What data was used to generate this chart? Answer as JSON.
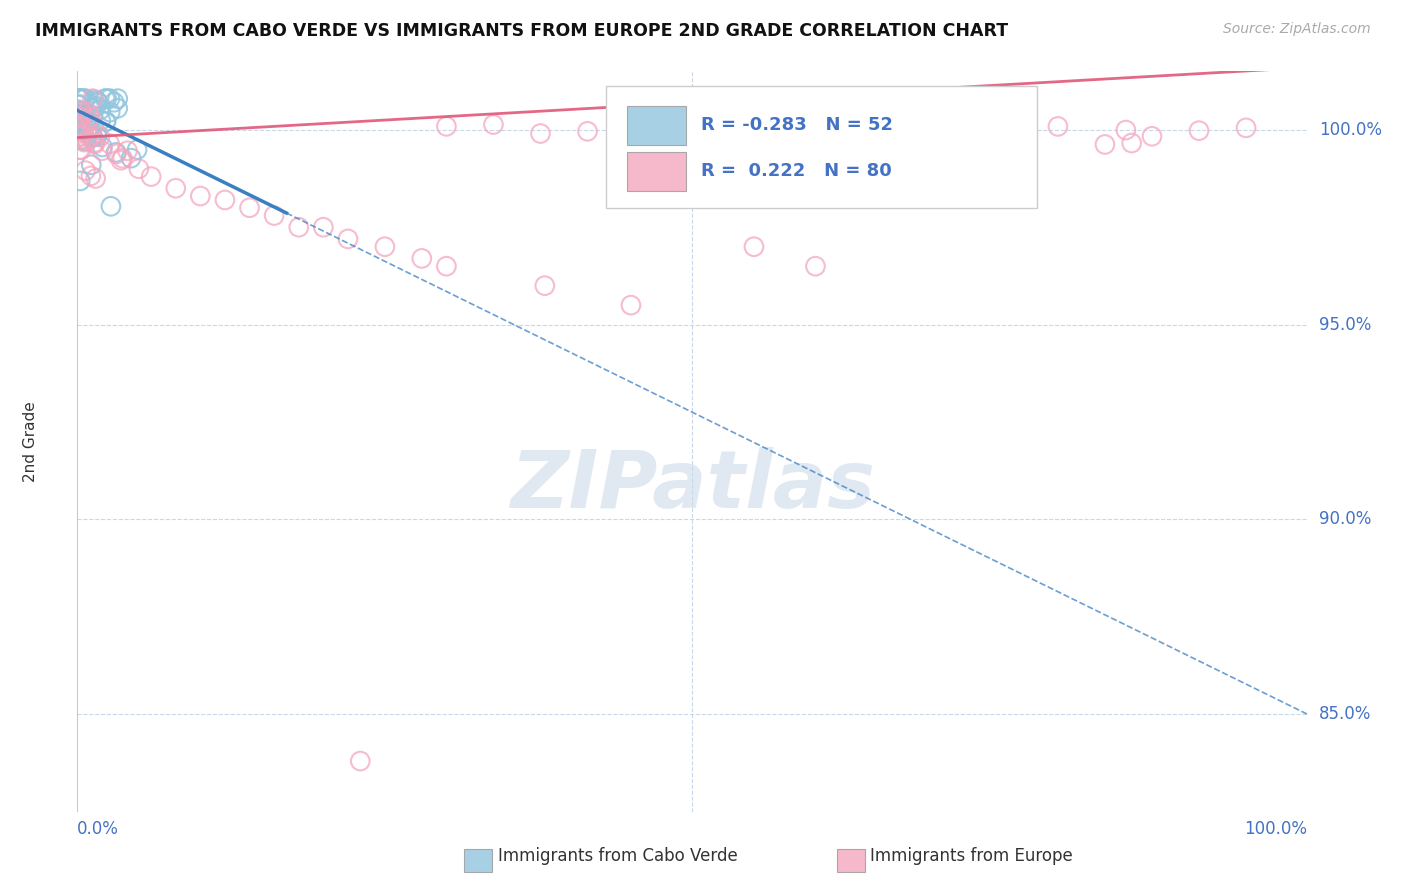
{
  "title": "IMMIGRANTS FROM CABO VERDE VS IMMIGRANTS FROM EUROPE 2ND GRADE CORRELATION CHART",
  "source": "Source: ZipAtlas.com",
  "ylabel": "2nd Grade",
  "ytick_labels": [
    "85.0%",
    "90.0%",
    "95.0%",
    "100.0%"
  ],
  "ytick_values": [
    0.85,
    0.9,
    0.95,
    1.0
  ],
  "xmin": 0.0,
  "xmax": 1.0,
  "ymin": 0.825,
  "ymax": 1.015,
  "r_blue": -0.283,
  "r_pink": 0.222,
  "n_blue": 52,
  "n_pink": 80,
  "blue_color": "#92c5de",
  "pink_color": "#f4a6bf",
  "blue_line_color": "#3a7fc1",
  "pink_line_color": "#e05878",
  "blue_slope": -0.155,
  "blue_intercept": 1.005,
  "pink_slope": 0.018,
  "pink_intercept": 0.998,
  "watermark": "ZIPatlas",
  "grid_color": "#c8d8e8",
  "axis_label_color": "#4472c4",
  "title_color": "#111111",
  "legend_text_color": "#4472c4"
}
